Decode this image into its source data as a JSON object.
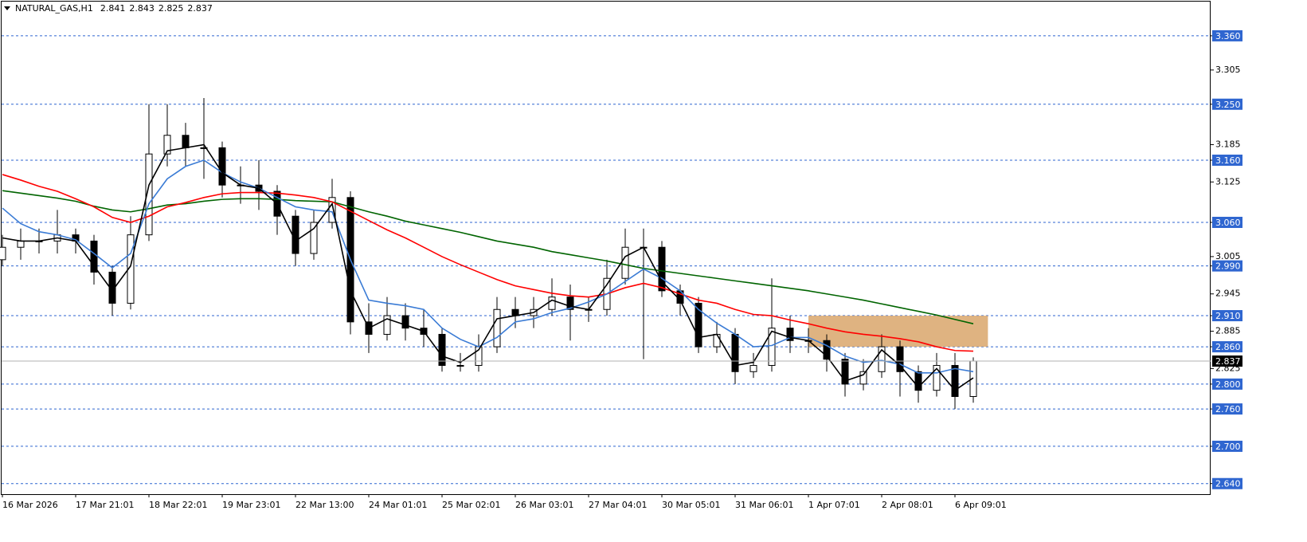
{
  "chart_data": {
    "type": "candlestick",
    "symbol": "NATURAL_GAS,H1",
    "quote": [
      2.841,
      2.843,
      2.825,
      2.837
    ],
    "categories": [
      "16 Mar 2026",
      null,
      null,
      null,
      "17 Mar 21:01",
      null,
      null,
      null,
      "18 Mar 22:01",
      null,
      null,
      null,
      "19 Mar 23:01",
      null,
      null,
      null,
      "22 Mar 13:00",
      null,
      null,
      null,
      "24 Mar 01:01",
      null,
      null,
      null,
      "25 Mar 02:01",
      null,
      null,
      null,
      "26 Mar 03:01",
      null,
      null,
      null,
      "27 Mar 04:01",
      null,
      null,
      null,
      "30 Mar 05:01",
      null,
      null,
      null,
      "31 Mar 06:01",
      null,
      null,
      null,
      "1 Apr 07:01",
      null,
      null,
      null,
      "2 Apr 08:01",
      null,
      null,
      null,
      "6 Apr 09:01",
      null
    ],
    "open": [
      3.0,
      3.02,
      3.03,
      3.03,
      3.04,
      3.03,
      2.98,
      2.93,
      3.04,
      3.17,
      3.2,
      3.18,
      3.18,
      3.12,
      3.12,
      3.11,
      3.07,
      3.01,
      3.06,
      3.1,
      2.9,
      2.88,
      2.91,
      2.89,
      2.88,
      2.83,
      2.83,
      2.86,
      2.92,
      2.91,
      2.92,
      2.94,
      2.92,
      2.92,
      2.97,
      3.02,
      3.02,
      2.95,
      2.93,
      2.86,
      2.88,
      2.82,
      2.83,
      2.89,
      2.87,
      2.87,
      2.84,
      2.8,
      2.82,
      2.86,
      2.82,
      2.79,
      2.83,
      2.78
    ],
    "high": [
      3.04,
      3.05,
      3.05,
      3.08,
      3.05,
      3.04,
      2.99,
      3.07,
      3.25,
      3.25,
      3.22,
      3.26,
      3.19,
      3.15,
      3.16,
      3.12,
      3.08,
      3.08,
      3.13,
      3.11,
      2.93,
      2.94,
      2.93,
      2.92,
      2.89,
      2.85,
      2.88,
      2.94,
      2.94,
      2.94,
      2.97,
      2.96,
      2.94,
      3.0,
      3.05,
      3.05,
      3.03,
      2.96,
      2.94,
      2.9,
      2.89,
      2.85,
      2.97,
      2.91,
      2.89,
      2.88,
      2.85,
      2.84,
      2.88,
      2.87,
      2.83,
      2.85,
      2.85,
      2.843
    ],
    "low": [
      2.99,
      3.0,
      3.01,
      3.01,
      3.01,
      2.96,
      2.91,
      2.92,
      3.03,
      3.15,
      3.15,
      3.13,
      3.1,
      3.09,
      3.08,
      3.04,
      2.99,
      3.0,
      3.05,
      2.88,
      2.85,
      2.87,
      2.87,
      2.86,
      2.82,
      2.82,
      2.82,
      2.85,
      2.89,
      2.89,
      2.91,
      2.87,
      2.9,
      2.91,
      2.96,
      2.84,
      2.94,
      2.91,
      2.85,
      2.85,
      2.8,
      2.81,
      2.82,
      2.85,
      2.85,
      2.82,
      2.78,
      2.79,
      2.81,
      2.78,
      2.77,
      2.78,
      2.76,
      2.77
    ],
    "close": [
      3.02,
      3.03,
      3.03,
      3.04,
      3.03,
      2.98,
      2.93,
      3.04,
      3.17,
      3.2,
      3.18,
      3.18,
      3.12,
      3.12,
      3.11,
      3.07,
      3.01,
      3.06,
      3.1,
      2.9,
      2.88,
      2.91,
      2.89,
      2.88,
      2.83,
      2.83,
      2.86,
      2.92,
      2.91,
      2.92,
      2.94,
      2.92,
      2.92,
      2.97,
      3.02,
      3.02,
      2.95,
      2.93,
      2.86,
      2.88,
      2.82,
      2.83,
      2.89,
      2.87,
      2.87,
      2.84,
      2.8,
      2.82,
      2.86,
      2.82,
      2.79,
      2.83,
      2.78,
      2.837
    ],
    "series": [
      {
        "color": "#006400",
        "values": [
          3.111,
          3.107,
          3.103,
          3.099,
          3.094,
          3.086,
          3.08,
          3.077,
          3.082,
          3.088,
          3.09,
          3.094,
          3.097,
          3.098,
          3.098,
          3.097,
          3.095,
          3.094,
          3.093,
          3.085,
          3.077,
          3.07,
          3.062,
          3.056,
          3.05,
          3.044,
          3.037,
          3.03,
          3.025,
          3.02,
          3.013,
          3.008,
          3.003,
          2.998,
          2.992,
          2.986,
          2.982,
          2.978,
          2.974,
          2.97,
          2.966,
          2.962,
          2.958,
          2.954,
          2.95,
          2.945,
          2.94,
          2.935,
          2.929,
          2.923,
          2.917,
          2.911,
          2.904,
          2.897
        ]
      },
      {
        "color": "#ff0000",
        "values": [
          3.137,
          3.128,
          3.118,
          3.11,
          3.098,
          3.085,
          3.068,
          3.06,
          3.07,
          3.085,
          3.092,
          3.1,
          3.106,
          3.108,
          3.108,
          3.107,
          3.104,
          3.1,
          3.093,
          3.078,
          3.063,
          3.048,
          3.035,
          3.02,
          3.005,
          2.992,
          2.98,
          2.968,
          2.958,
          2.952,
          2.946,
          2.942,
          2.94,
          2.945,
          2.955,
          2.962,
          2.955,
          2.945,
          2.935,
          2.93,
          2.92,
          2.912,
          2.91,
          2.903,
          2.897,
          2.89,
          2.884,
          2.88,
          2.877,
          2.873,
          2.868,
          2.86,
          2.854,
          2.853
        ]
      },
      {
        "color": "#3a7bd5",
        "values": [
          3.083,
          3.058,
          3.045,
          3.04,
          3.032,
          3.01,
          2.987,
          3.01,
          3.09,
          3.13,
          3.15,
          3.16,
          3.14,
          3.125,
          3.115,
          3.1,
          3.085,
          3.08,
          3.077,
          3.0,
          2.935,
          2.93,
          2.926,
          2.92,
          2.89,
          2.872,
          2.86,
          2.875,
          2.9,
          2.905,
          2.915,
          2.922,
          2.932,
          2.945,
          2.965,
          2.985,
          2.97,
          2.95,
          2.92,
          2.898,
          2.88,
          2.86,
          2.862,
          2.875,
          2.875,
          2.862,
          2.845,
          2.835,
          2.838,
          2.832,
          2.818,
          2.818,
          2.825,
          2.82
        ]
      },
      {
        "color": "#000000",
        "values": [
          3.035,
          3.03,
          3.03,
          3.035,
          3.03,
          2.99,
          2.95,
          2.99,
          3.12,
          3.175,
          3.18,
          3.185,
          3.14,
          3.12,
          3.115,
          3.09,
          3.03,
          3.05,
          3.09,
          2.95,
          2.89,
          2.905,
          2.895,
          2.885,
          2.845,
          2.835,
          2.855,
          2.905,
          2.91,
          2.915,
          2.935,
          2.925,
          2.92,
          2.96,
          3.005,
          3.02,
          2.965,
          2.935,
          2.875,
          2.88,
          2.83,
          2.835,
          2.885,
          2.875,
          2.87,
          2.845,
          2.805,
          2.815,
          2.855,
          2.83,
          2.795,
          2.825,
          2.79,
          2.81
        ]
      }
    ],
    "zone": {
      "from": 2.91,
      "to": 2.86,
      "start": 44,
      "end": 53.8,
      "color": "#d9a66b"
    },
    "ylim": [
      2.623,
      3.415
    ],
    "yticks": [
      3.305,
      3.185,
      3.125,
      3.005,
      2.945,
      2.885,
      2.825
    ],
    "levels": [
      {
        "value": 3.36,
        "label": "3.360"
      },
      {
        "value": 3.25,
        "label": "3.250"
      },
      {
        "value": 3.16,
        "label": "3.160"
      },
      {
        "value": 3.06,
        "label": "3.060"
      },
      {
        "value": 2.99,
        "label": "2.990"
      },
      {
        "value": 2.91,
        "label": "2.910"
      },
      {
        "value": 2.86,
        "label": "2.860"
      },
      {
        "value": 2.8,
        "label": "2.800"
      },
      {
        "value": 2.76,
        "label": "2.760"
      },
      {
        "value": 2.7,
        "label": "2.700"
      },
      {
        "value": 2.64,
        "label": "2.640"
      }
    ],
    "level_color": "#2f66d0"
  }
}
